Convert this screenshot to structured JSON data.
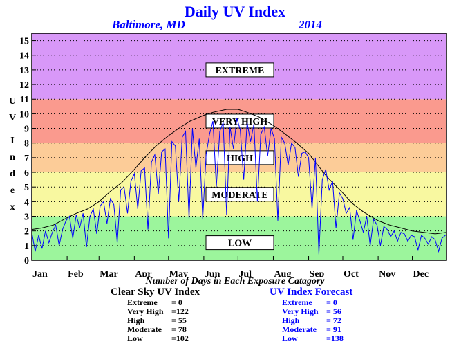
{
  "header": {
    "title": "Daily UV Index",
    "location": "Baltimore, MD",
    "year": "2014"
  },
  "chart_data": {
    "type": "line",
    "title": "Daily UV Index",
    "ylabel": "U V  I n d e x",
    "xlabel": "",
    "ylim": [
      0,
      15
    ],
    "yticks": [
      "0",
      "1",
      "2",
      "3",
      "4",
      "5",
      "6",
      "7",
      "8",
      "9",
      "10",
      "11",
      "12",
      "13",
      "14",
      "15"
    ],
    "xticks": [
      "Jan",
      "Feb",
      "Mar",
      "Apr",
      "May",
      "Jun",
      "Jul",
      "Aug",
      "Sep",
      "Oct",
      "Nov",
      "Dec"
    ],
    "grid": true,
    "bands": [
      {
        "label": "LOW",
        "from": 0,
        "to": 3,
        "color": "#9cf59c"
      },
      {
        "label": "MODERATE",
        "from": 3,
        "to": 6,
        "color": "#f8f8a0"
      },
      {
        "label": "HIGH",
        "from": 6,
        "to": 8,
        "color": "#fccc98"
      },
      {
        "label": "VERY HIGH",
        "from": 8,
        "to": 11,
        "color": "#fa9a8e"
      },
      {
        "label": "EXTREME",
        "from": 11,
        "to": 15.5,
        "color": "#d898f8"
      }
    ],
    "series": [
      {
        "key": "clear_sky",
        "color": "#000000",
        "x": [
          1,
          10,
          20,
          32,
          40,
          50,
          60,
          70,
          80,
          91,
          100,
          110,
          121,
          130,
          140,
          152,
          160,
          172,
          182,
          190,
          200,
          213,
          222,
          232,
          244,
          252,
          260,
          274,
          282,
          292,
          305,
          315,
          325,
          335,
          345,
          355,
          365
        ],
        "y": [
          2.1,
          2.2,
          2.4,
          2.9,
          3.2,
          3.5,
          4.0,
          4.7,
          5.3,
          6.2,
          7.0,
          7.8,
          8.5,
          9.0,
          9.5,
          9.9,
          10.1,
          10.3,
          10.3,
          10.1,
          9.8,
          9.2,
          8.7,
          8.1,
          7.3,
          6.5,
          5.7,
          4.6,
          3.9,
          3.3,
          2.7,
          2.4,
          2.2,
          2.0,
          1.9,
          1.8,
          1.9
        ]
      },
      {
        "key": "forecast",
        "color": "#0000ff",
        "x": [
          1,
          4,
          7,
          10,
          13,
          16,
          19,
          22,
          25,
          28,
          31,
          34,
          37,
          40,
          43,
          46,
          49,
          52,
          55,
          58,
          61,
          64,
          67,
          70,
          73,
          76,
          79,
          82,
          85,
          88,
          91,
          94,
          97,
          100,
          103,
          106,
          109,
          112,
          115,
          118,
          121,
          124,
          127,
          130,
          133,
          136,
          139,
          142,
          145,
          148,
          151,
          154,
          157,
          160,
          163,
          166,
          169,
          172,
          175,
          178,
          181,
          184,
          187,
          190,
          193,
          196,
          199,
          202,
          205,
          208,
          211,
          214,
          217,
          220,
          223,
          226,
          229,
          232,
          235,
          238,
          241,
          244,
          247,
          250,
          253,
          256,
          259,
          262,
          265,
          268,
          271,
          274,
          277,
          280,
          283,
          286,
          289,
          292,
          295,
          298,
          301,
          304,
          307,
          310,
          313,
          316,
          319,
          322,
          325,
          328,
          331,
          334,
          337,
          340,
          343,
          346,
          349,
          352,
          355,
          358,
          361,
          364
        ],
        "y": [
          1.9,
          0.6,
          1.7,
          0.8,
          2.0,
          1.2,
          1.9,
          2.4,
          1.0,
          2.1,
          2.7,
          3.0,
          1.5,
          3.1,
          2.2,
          3.2,
          0.9,
          3.0,
          3.5,
          1.8,
          3.7,
          4.0,
          2.5,
          4.2,
          3.8,
          1.2,
          4.8,
          5.0,
          3.2,
          5.4,
          5.9,
          3.5,
          6.1,
          6.3,
          2.1,
          6.7,
          7.2,
          4.5,
          7.4,
          7.6,
          1.5,
          8.1,
          7.8,
          4.0,
          8.4,
          8.8,
          2.8,
          9.0,
          6.3,
          8.3,
          2.8,
          7.2,
          8.6,
          9.5,
          5.0,
          8.8,
          9.4,
          3.1,
          9.1,
          7.6,
          9.7,
          8.9,
          5.5,
          9.4,
          8.1,
          9.3,
          4.0,
          8.6,
          9.1,
          7.1,
          9.0,
          8.3,
          2.7,
          8.4,
          8.0,
          6.5,
          8.0,
          7.7,
          5.7,
          7.3,
          7.4,
          7.0,
          3.5,
          7.0,
          0.4,
          5.5,
          6.2,
          4.8,
          5.4,
          2.2,
          4.6,
          4.2,
          3.2,
          3.6,
          1.4,
          3.4,
          2.7,
          1.9,
          3.0,
          1.0,
          2.8,
          2.4,
          1.0,
          2.3,
          2.1,
          1.6,
          2.0,
          1.3,
          1.9,
          1.8,
          1.3,
          1.7,
          1.6,
          0.7,
          1.7,
          1.5,
          1.1,
          1.6,
          1.4,
          0.6,
          1.5,
          1.7
        ]
      }
    ]
  },
  "footer": {
    "caption": "Number of Days in Each Exposure Catagory",
    "clear_sky": {
      "title": "Clear Sky UV Index",
      "rows": [
        {
          "label": "Extreme",
          "value": "=    0"
        },
        {
          "label": "Very High",
          "value": "=122"
        },
        {
          "label": "High",
          "value": "=  55"
        },
        {
          "label": "Moderate",
          "value": "=  78"
        },
        {
          "label": "Low",
          "value": "=102"
        }
      ]
    },
    "forecast": {
      "title": "UV Index Forecast",
      "rows": [
        {
          "label": "Extreme",
          "value": "=    0"
        },
        {
          "label": "Very High",
          "value": "=  56"
        },
        {
          "label": "High",
          "value": "=  72"
        },
        {
          "label": "Moderate",
          "value": "=  91"
        },
        {
          "label": "Low",
          "value": "=138"
        }
      ]
    }
  }
}
